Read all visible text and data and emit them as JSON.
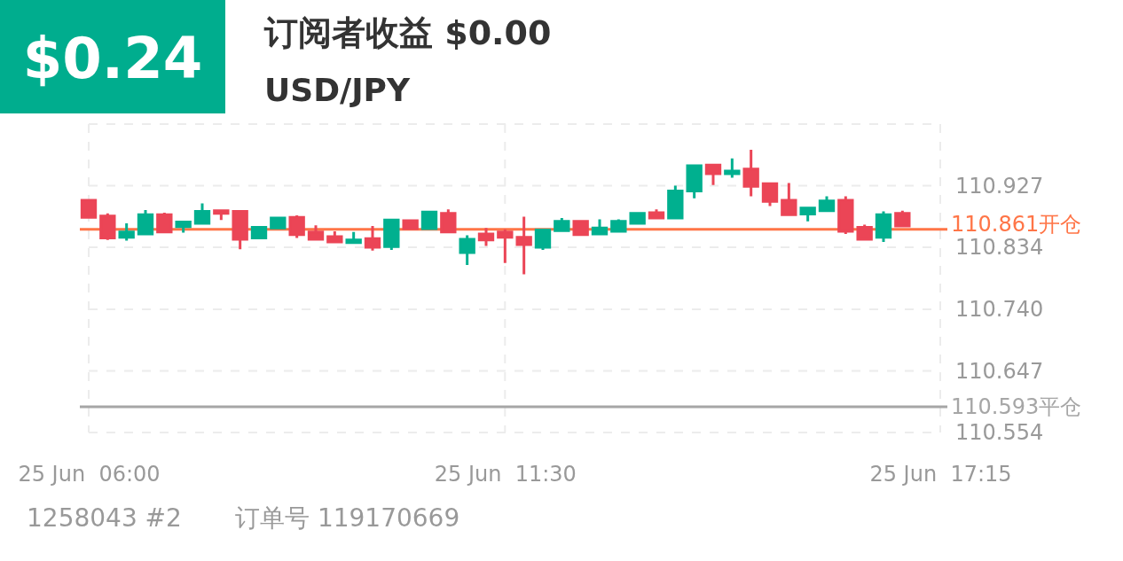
{
  "chart_data": {
    "type": "candlestick",
    "title": "订阅者收益 $0.00",
    "subtitle": "USD/JPY",
    "annotations": [
      "$0.24",
      "1258043 #2",
      "订单号 119170669"
    ],
    "categories": [
      "25 Jun  06:00",
      null,
      null,
      null,
      null,
      null,
      null,
      null,
      null,
      null,
      null,
      null,
      null,
      null,
      null,
      null,
      null,
      null,
      null,
      null,
      null,
      null,
      "25 Jun  11:30",
      null,
      null,
      null,
      null,
      null,
      null,
      null,
      null,
      null,
      null,
      null,
      null,
      null,
      null,
      null,
      null,
      null,
      null,
      null,
      null,
      null,
      null,
      "25 Jun  17:15"
    ],
    "ohlc": [
      [
        110.905,
        110.906,
        110.878,
        110.879
      ],
      [
        110.881,
        110.885,
        110.845,
        110.848
      ],
      [
        110.849,
        110.87,
        110.844,
        110.857
      ],
      [
        110.854,
        110.89,
        110.854,
        110.883
      ],
      [
        110.883,
        110.886,
        110.856,
        110.857
      ],
      [
        110.865,
        110.874,
        110.856,
        110.872
      ],
      [
        110.87,
        110.9,
        110.87,
        110.888
      ],
      [
        110.889,
        110.891,
        110.875,
        110.885
      ],
      [
        110.888,
        110.888,
        110.831,
        110.846
      ],
      [
        110.848,
        110.864,
        110.848,
        110.864
      ],
      [
        110.863,
        110.879,
        110.863,
        110.878
      ],
      [
        110.879,
        110.882,
        110.848,
        110.853
      ],
      [
        110.857,
        110.867,
        110.846,
        110.846
      ],
      [
        110.85,
        110.858,
        110.842,
        110.842
      ],
      [
        110.841,
        110.857,
        110.841,
        110.845
      ],
      [
        110.847,
        110.866,
        110.829,
        110.834
      ],
      [
        110.835,
        110.875,
        110.83,
        110.875
      ],
      [
        110.874,
        110.874,
        110.862,
        110.862
      ],
      [
        110.862,
        110.887,
        110.862,
        110.887
      ],
      [
        110.885,
        110.891,
        110.857,
        110.857
      ],
      [
        110.826,
        110.852,
        110.807,
        110.846
      ],
      [
        110.854,
        110.863,
        110.836,
        110.845
      ],
      [
        110.857,
        110.861,
        110.81,
        110.849
      ],
      [
        110.849,
        110.88,
        110.793,
        110.838
      ],
      [
        110.834,
        110.86,
        110.83,
        110.86
      ],
      [
        110.859,
        110.878,
        110.859,
        110.873
      ],
      [
        110.873,
        110.873,
        110.852,
        110.853
      ],
      [
        110.854,
        110.876,
        110.854,
        110.863
      ],
      [
        110.858,
        110.876,
        110.858,
        110.873
      ],
      [
        110.87,
        110.887,
        110.87,
        110.885
      ],
      [
        110.886,
        110.891,
        110.876,
        110.878
      ],
      [
        110.878,
        110.927,
        110.878,
        110.919
      ],
      [
        110.919,
        110.958,
        110.908,
        110.957
      ],
      [
        110.958,
        110.96,
        110.928,
        110.945
      ],
      [
        110.946,
        110.968,
        110.939,
        110.949
      ],
      [
        110.952,
        110.981,
        110.911,
        110.926
      ],
      [
        110.93,
        110.93,
        110.896,
        110.903
      ],
      [
        110.905,
        110.931,
        110.882,
        110.883
      ],
      [
        110.884,
        110.893,
        110.873,
        110.893
      ],
      [
        110.889,
        110.911,
        110.887,
        110.904
      ],
      [
        110.905,
        110.911,
        110.854,
        110.858
      ],
      [
        110.864,
        110.868,
        110.845,
        110.846
      ],
      [
        110.849,
        110.888,
        110.842,
        110.883
      ],
      [
        110.885,
        110.889,
        110.866,
        110.866
      ],
      null,
      null
    ],
    "ylim": [
      110.554,
      111.02
    ],
    "yticks": [
      110.554,
      110.647,
      {
        "value": 110.74,
        "label": "110.740"
      },
      110.834,
      110.927,
      {
        "value": 111.02,
        "label": null
      }
    ],
    "grid": true,
    "ref_lines": [
      {
        "axis": "y",
        "value": 110.861,
        "label": "110.861开仓",
        "color": "#ff7547"
      },
      {
        "axis": "y",
        "value": 110.593,
        "label": "110.593平仓",
        "color": "#a6a6a6"
      }
    ]
  }
}
